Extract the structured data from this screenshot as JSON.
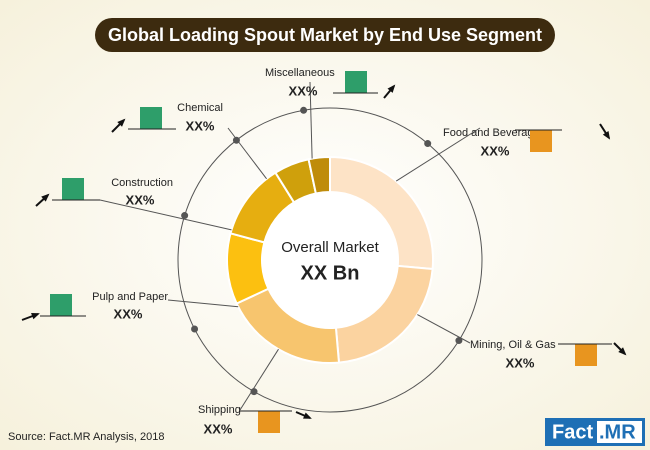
{
  "header": {
    "title": "Global Loading Spout Market by End Use Segment"
  },
  "center": {
    "label": "Overall Market",
    "value": "XX Bn"
  },
  "segments": [
    {
      "label": "Miscellaneous",
      "value": "XX%"
    },
    {
      "label": "Chemical",
      "value": "XX%"
    },
    {
      "label": "Food and Beverage",
      "value": "XX%"
    },
    {
      "label": "Construction",
      "value": "XX%"
    },
    {
      "label": "Pulp and Paper",
      "value": "XX%"
    },
    {
      "label": "Mining, Oil & Gas",
      "value": "XX%"
    },
    {
      "label": "Shipping",
      "value": "XX%"
    }
  ],
  "source": "Source: Fact.MR Analysis, 2018",
  "logo": {
    "brand": "Fact",
    "suffix": ".MR"
  }
}
